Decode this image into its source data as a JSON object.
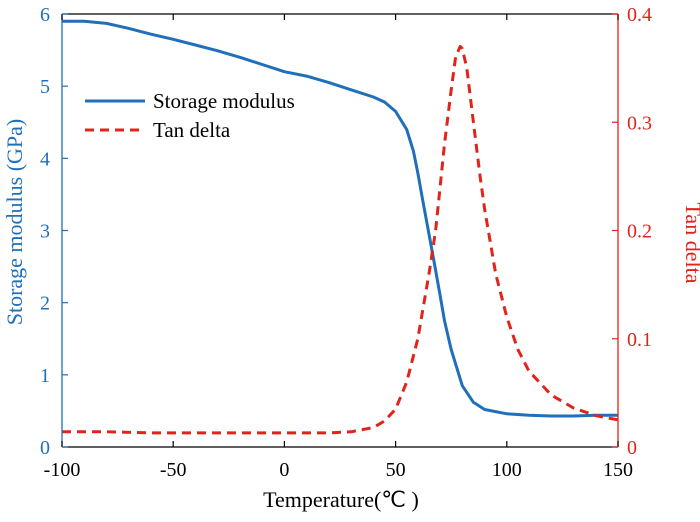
{
  "chart_data": {
    "type": "line",
    "xlabel": "Temperature(℃ )",
    "ylabel_left": "Storage modulus (GPa)",
    "ylabel_right": "Tan delta",
    "xlim": [
      -100,
      150
    ],
    "ylim_left": [
      0,
      6
    ],
    "ylim_right": [
      0,
      0.4
    ],
    "x_ticks": [
      "-100",
      "-50",
      "0",
      "50",
      "100",
      "150"
    ],
    "y_left_ticks": [
      "0",
      "1",
      "2",
      "3",
      "4",
      "5",
      "6"
    ],
    "y_right_ticks": [
      "0",
      "0.1",
      "0.2",
      "0.3",
      "0.4"
    ],
    "legend_position": "upper-left",
    "grid": false,
    "colors": {
      "storage": "#1f6fba",
      "tan": "#e0241b",
      "axes": "#000000"
    },
    "series": [
      {
        "name": "Storage modulus",
        "axis": "left",
        "style": "solid",
        "x": [
          -100,
          -90,
          -80,
          -70,
          -60,
          -50,
          -40,
          -30,
          -20,
          -10,
          0,
          10,
          20,
          30,
          40,
          45,
          50,
          55,
          58,
          60,
          62,
          65,
          68,
          70,
          72,
          75,
          80,
          85,
          90,
          100,
          110,
          120,
          130,
          140,
          150
        ],
        "y": [
          5.9,
          5.9,
          5.87,
          5.8,
          5.72,
          5.65,
          5.57,
          5.49,
          5.4,
          5.3,
          5.2,
          5.14,
          5.05,
          4.95,
          4.85,
          4.78,
          4.65,
          4.4,
          4.1,
          3.8,
          3.45,
          2.95,
          2.45,
          2.1,
          1.75,
          1.35,
          0.85,
          0.62,
          0.52,
          0.46,
          0.44,
          0.43,
          0.43,
          0.44,
          0.44
        ]
      },
      {
        "name": "Tan delta",
        "axis": "right",
        "style": "dashed",
        "x": [
          -100,
          -80,
          -60,
          -40,
          -20,
          0,
          20,
          30,
          40,
          45,
          50,
          55,
          60,
          65,
          68,
          70,
          72,
          75,
          77,
          79,
          80,
          82,
          85,
          88,
          90,
          95,
          100,
          105,
          110,
          120,
          130,
          140,
          150
        ],
        "y": [
          0.014,
          0.014,
          0.013,
          0.013,
          0.013,
          0.013,
          0.013,
          0.014,
          0.018,
          0.024,
          0.035,
          0.06,
          0.1,
          0.16,
          0.2,
          0.24,
          0.28,
          0.33,
          0.36,
          0.37,
          0.368,
          0.35,
          0.3,
          0.25,
          0.22,
          0.16,
          0.12,
          0.09,
          0.07,
          0.048,
          0.036,
          0.029,
          0.025
        ]
      }
    ]
  }
}
